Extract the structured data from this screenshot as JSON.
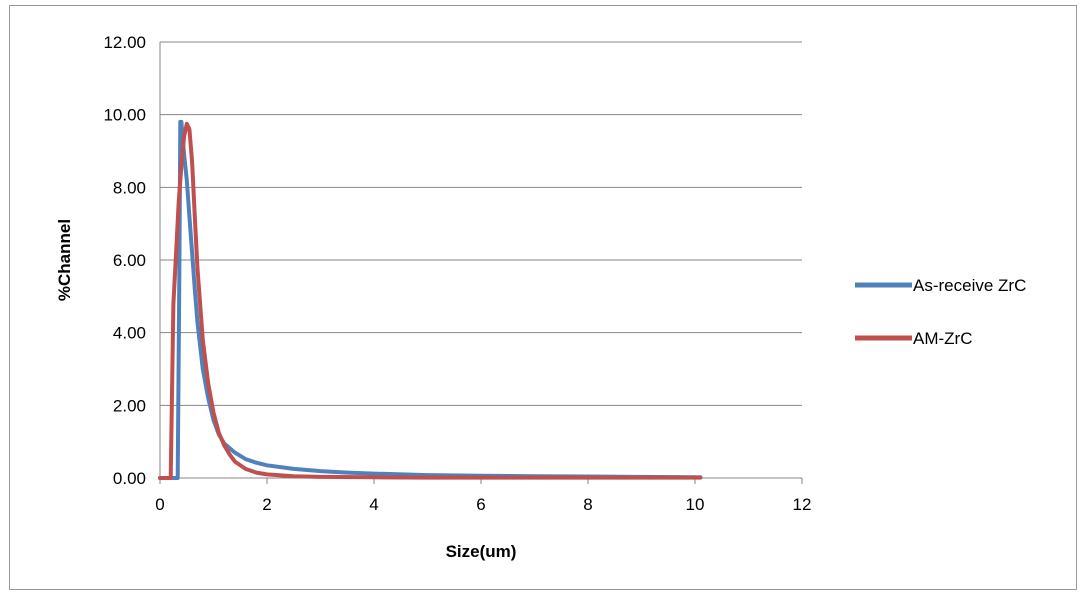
{
  "chart_data": {
    "type": "line",
    "title": "",
    "xlabel": "Size(um)",
    "ylabel": "%Channel",
    "xlim": [
      0,
      12
    ],
    "ylim": [
      0,
      12
    ],
    "x_ticks": [
      "0",
      "2",
      "4",
      "6",
      "8",
      "10",
      "12"
    ],
    "y_ticks": [
      "0.00",
      "2.00",
      "4.00",
      "6.00",
      "8.00",
      "10.00",
      "12.00"
    ],
    "grid": "horizontal",
    "legend_position": "right",
    "series": [
      {
        "name": "As-receive ZrC",
        "color": "#4f81bd",
        "x": [
          0,
          0.3,
          0.33,
          0.36,
          0.38,
          0.4,
          0.42,
          0.45,
          0.5,
          0.55,
          0.6,
          0.65,
          0.7,
          0.8,
          0.9,
          1.0,
          1.1,
          1.2,
          1.4,
          1.6,
          1.8,
          2.0,
          2.5,
          3.0,
          3.5,
          4.0,
          5.0,
          6.0,
          7.0,
          8.0,
          9.0,
          10.0,
          10.1
        ],
        "y": [
          0,
          0,
          0,
          5.5,
          9.8,
          9.8,
          9.4,
          8.9,
          8.2,
          7.2,
          6.2,
          5.2,
          4.3,
          3.0,
          2.2,
          1.6,
          1.2,
          0.95,
          0.7,
          0.52,
          0.42,
          0.35,
          0.25,
          0.19,
          0.15,
          0.12,
          0.08,
          0.06,
          0.05,
          0.04,
          0.03,
          0.02,
          0.02
        ]
      },
      {
        "name": "AM-ZrC",
        "color": "#c0504d",
        "x": [
          0,
          0.2,
          0.22,
          0.25,
          0.3,
          0.35,
          0.4,
          0.45,
          0.5,
          0.55,
          0.6,
          0.65,
          0.7,
          0.8,
          0.9,
          1.0,
          1.1,
          1.2,
          1.3,
          1.4,
          1.6,
          1.8,
          2.0,
          2.5,
          3.0,
          4.0,
          5.0,
          6.0,
          8.0,
          10.0,
          10.1
        ],
        "y": [
          0,
          0,
          2.0,
          4.8,
          6.2,
          7.6,
          8.6,
          9.4,
          9.75,
          9.6,
          8.7,
          7.2,
          5.8,
          3.8,
          2.6,
          1.8,
          1.25,
          0.9,
          0.65,
          0.45,
          0.25,
          0.15,
          0.1,
          0.05,
          0.03,
          0.02,
          0.01,
          0.01,
          0.01,
          0.01,
          0.01
        ]
      }
    ]
  }
}
